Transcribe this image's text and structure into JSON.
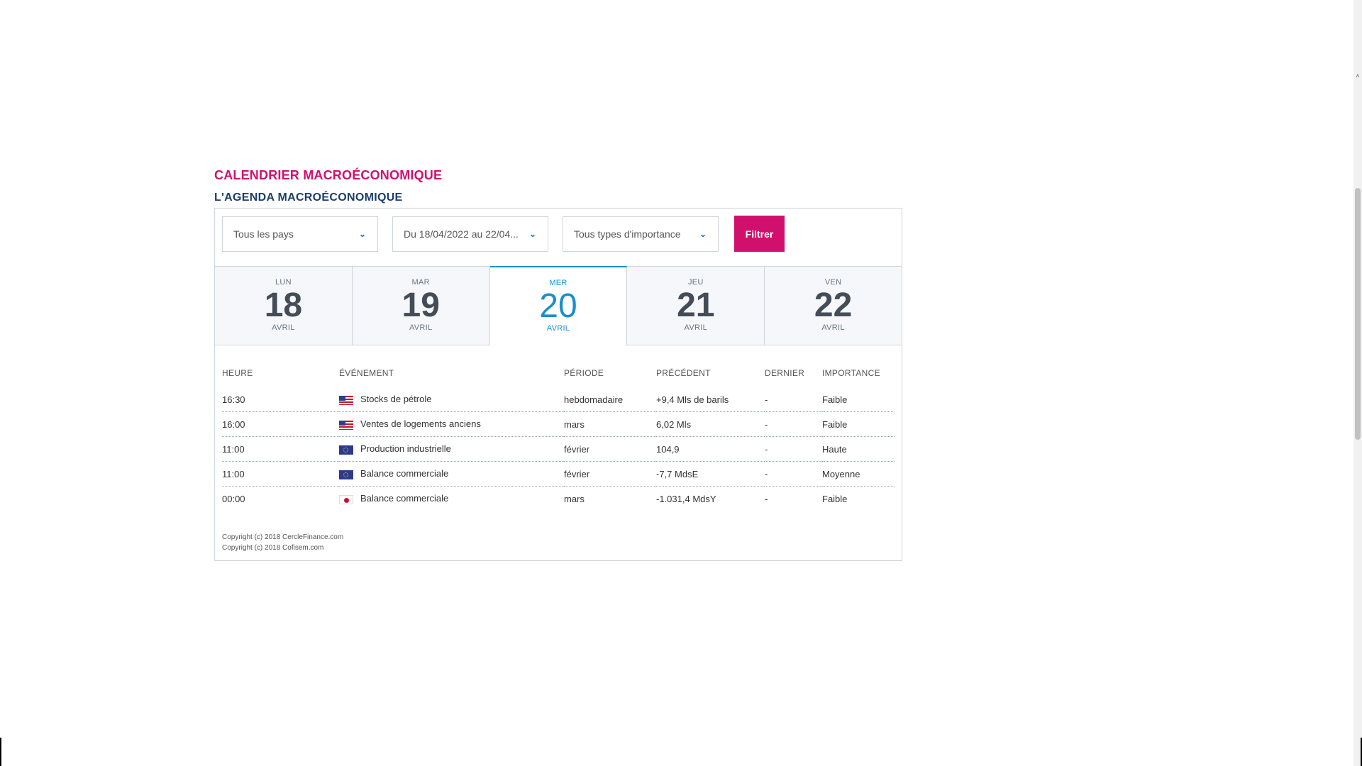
{
  "header": {
    "title": "CALENDRIER MACROÉCONOMIQUE",
    "subtitle": "L'AGENDA MACROÉCONOMIQUE"
  },
  "filters": {
    "country": "Tous les pays",
    "date_range": "Du 18/04/2022 au 22/04...",
    "importance": "Tous types d'importance",
    "button_label": "Filtrer"
  },
  "days": [
    {
      "name": "LUN",
      "num": "18",
      "month": "AVRIL",
      "active": false
    },
    {
      "name": "MAR",
      "num": "19",
      "month": "AVRIL",
      "active": false
    },
    {
      "name": "MER",
      "num": "20",
      "month": "AVRIL",
      "active": true
    },
    {
      "name": "JEU",
      "num": "21",
      "month": "AVRIL",
      "active": false
    },
    {
      "name": "VEN",
      "num": "22",
      "month": "AVRIL",
      "active": false
    }
  ],
  "table": {
    "headers": [
      "HEURE",
      "ÉVÉNEMENT",
      "PÉRIODE",
      "PRÉCÉDENT",
      "DERNIER",
      "IMPORTANCE"
    ],
    "rows": [
      {
        "time": "16:30",
        "flag": "us-flag-icon",
        "event": "Stocks de pétrole",
        "period": "hebdomadaire",
        "previous": "+9,4 Mls de barils",
        "last": "-",
        "importance": "Faible"
      },
      {
        "time": "16:00",
        "flag": "us-flag-icon",
        "event": "Ventes de logements anciens",
        "period": "mars",
        "previous": "6,02 Mls",
        "last": "-",
        "importance": "Faible"
      },
      {
        "time": "11:00",
        "flag": "eu-flag-icon",
        "event": "Production industrielle",
        "period": "février",
        "previous": "104,9",
        "last": "-",
        "importance": "Haute"
      },
      {
        "time": "11:00",
        "flag": "eu-flag-icon",
        "event": "Balance commerciale",
        "period": "février",
        "previous": "-7,7 MdsE",
        "last": "-",
        "importance": "Moyenne"
      },
      {
        "time": "00:00",
        "flag": "jp-flag-icon",
        "event": "Balance commerciale",
        "period": "mars",
        "previous": "-1.031,4 MdsY",
        "last": "-",
        "importance": "Faible"
      }
    ]
  },
  "copyright": {
    "line1": "Copyright (c) 2018 CercleFinance.com",
    "line2": "Copyright (c) 2018 Cofisem.com"
  },
  "colors": {
    "accent": "#d1106e",
    "navy": "#1c3d6e",
    "active_day": "#1a8fcb",
    "faible": "#2bb39a",
    "haute": "#e8962a",
    "moyenne": "#2ea84f"
  }
}
